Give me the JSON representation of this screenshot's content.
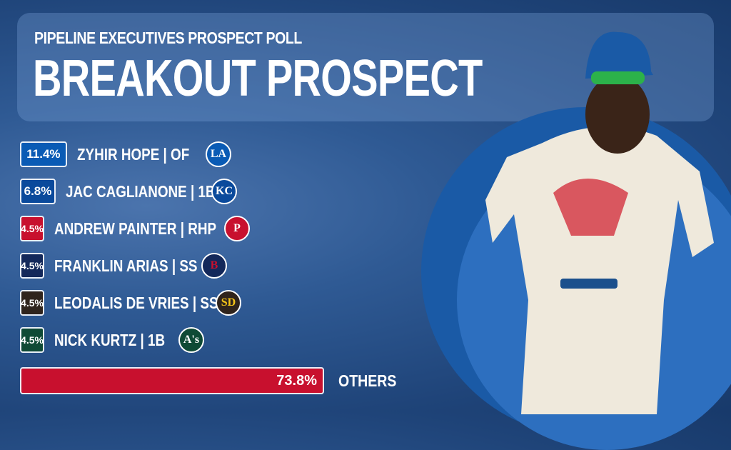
{
  "header": {
    "kicker_bold": "PIPELINE",
    "kicker_rest": "EXECUTIVES PROSPECT POLL",
    "title": "BREAKOUT PROSPECT"
  },
  "chart_data": {
    "type": "bar",
    "title": "BREAKOUT PROSPECT",
    "categories": [
      "ZYHIR HOPE | OF",
      "JAC CAGLIANONE | 1B",
      "ANDREW PAINTER | RHP",
      "FRANKLIN ARIAS | SS",
      "LEODALIS DE VRIES | SS",
      "NICK KURTZ | 1B",
      "OTHERS"
    ],
    "values": [
      11.4,
      6.8,
      4.5,
      4.5,
      4.5,
      4.5,
      73.8
    ],
    "labels": [
      "11.4%",
      "6.8%",
      "4.5%",
      "4.5%",
      "4.5%",
      "4.5%",
      "73.8%"
    ],
    "colors": [
      "#0a5bb5",
      "#0a4a9c",
      "#c8102e",
      "#13285a",
      "#2f241d",
      "#0f4a35",
      "#c8102e"
    ],
    "teams": [
      {
        "logo": "dodgers-logo-icon",
        "text": "LA",
        "color": "#0a5bb5",
        "fg": "#fff"
      },
      {
        "logo": "royals-logo-icon",
        "text": "KC",
        "color": "#0a4a9c",
        "fg": "#fff"
      },
      {
        "logo": "phillies-logo-icon",
        "text": "P",
        "color": "#c8102e",
        "fg": "#fff"
      },
      {
        "logo": "red-sox-logo-icon",
        "text": "B",
        "color": "#13285a",
        "fg": "#c8102e"
      },
      {
        "logo": "padres-logo-icon",
        "text": "SD",
        "color": "#2f241d",
        "fg": "#f5c518"
      },
      {
        "logo": "athletics-logo-icon",
        "text": "A's",
        "color": "#0f4a35",
        "fg": "#fff"
      }
    ]
  }
}
